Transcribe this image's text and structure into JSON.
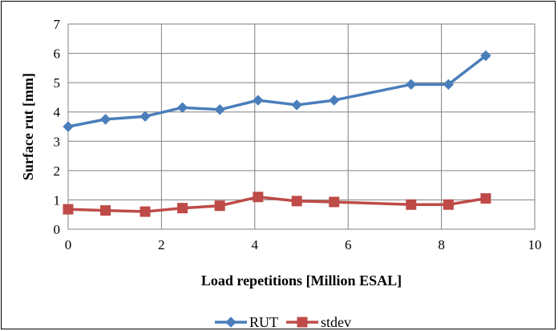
{
  "chart_data": {
    "type": "line",
    "xlabel": "Load repetitions [Million ESAL]",
    "ylabel": "Surface rut  [mm]",
    "xlim": [
      0,
      10
    ],
    "ylim": [
      0,
      7
    ],
    "xticks": [
      0,
      2,
      4,
      6,
      8,
      10
    ],
    "yticks": [
      0,
      1,
      2,
      3,
      4,
      5,
      6,
      7
    ],
    "grid": true,
    "legend": "bottom",
    "series": [
      {
        "name": "RUT",
        "color": "#4a7ebb",
        "marker": "diamond",
        "points": [
          [
            0,
            3.5
          ],
          [
            0.8,
            3.75
          ],
          [
            1.65,
            3.85
          ],
          [
            2.45,
            4.15
          ],
          [
            3.25,
            4.08
          ],
          [
            4.07,
            4.4
          ],
          [
            4.9,
            4.24
          ],
          [
            5.7,
            4.4
          ],
          [
            7.35,
            4.94
          ],
          [
            8.15,
            4.94
          ],
          [
            8.95,
            5.92
          ]
        ]
      },
      {
        "name": "stdev",
        "color": "#be4b48",
        "marker": "square",
        "points": [
          [
            0,
            0.68
          ],
          [
            0.8,
            0.64
          ],
          [
            1.65,
            0.6
          ],
          [
            2.45,
            0.72
          ],
          [
            3.25,
            0.8
          ],
          [
            4.07,
            1.1
          ],
          [
            4.9,
            0.96
          ],
          [
            5.7,
            0.93
          ],
          [
            7.35,
            0.84
          ],
          [
            8.15,
            0.84
          ],
          [
            8.95,
            1.05
          ]
        ]
      }
    ]
  }
}
